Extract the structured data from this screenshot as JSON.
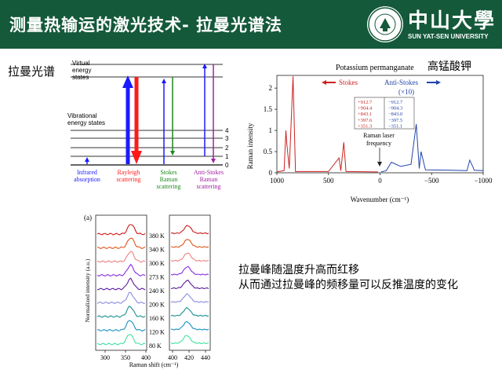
{
  "header": {
    "title": "测量热输运的激光技术- 拉曼光谱法",
    "logo_cn": "中山大學",
    "logo_en": "SUN YAT-SEN UNIVERSITY",
    "bg_color": "#14593a"
  },
  "labels": {
    "raman_spectrum": "拉曼光谱",
    "kmno4": "高锰酸钾",
    "note_line1": "拉曼峰随温度升高而红移",
    "note_line2": "从而通过拉曼峰的频移量可以反推温度的变化"
  },
  "energy_diagram": {
    "virtual_label": [
      "Virtual",
      "energy",
      "states"
    ],
    "vibrational_label": [
      "Vibrational",
      "energy states"
    ],
    "level_labels": [
      "0",
      "1",
      "2",
      "3",
      "4"
    ],
    "processes": [
      {
        "name": [
          "Infrared",
          "absorption"
        ],
        "color": "#1a1aff"
      },
      {
        "name": [
          "Rayleigh",
          "scattering"
        ],
        "color": "#ff1a1a"
      },
      {
        "name": [
          "Stokes",
          "Raman",
          "scattering"
        ],
        "color": "#1a8a1a"
      },
      {
        "name": [
          "Anti-Stokes",
          "Raman",
          "scattering"
        ],
        "color": "#a020a0"
      }
    ]
  },
  "chart_data": [
    {
      "type": "line",
      "title": "Potassium permanganate",
      "xlabel": "Wavenumber (cm⁻¹)",
      "ylabel": "Raman intensity",
      "xlim": [
        1000,
        -1000
      ],
      "ylim": [
        0,
        2.3
      ],
      "x_ticks": [
        "1000",
        "500",
        "0",
        "−500",
        "−1000"
      ],
      "y_ticks": [
        "0",
        "0.5",
        "1",
        "1.5",
        "2"
      ],
      "legend": {
        "stokes": "Stokes",
        "anti_stokes": "Anti-Stokes",
        "anti_stokes_scale": "(×10)"
      },
      "series": [
        {
          "name": "Stokes",
          "color": "#cc2222",
          "x": [
            1000,
            930,
            912.7,
            904.4,
            880,
            843.1,
            820,
            500,
            397.6,
            380,
            351.3,
            330,
            20
          ],
          "y": [
            0.02,
            0.05,
            1.0,
            0.7,
            0.1,
            2.28,
            0.03,
            0.03,
            0.35,
            0.05,
            0.72,
            0.03,
            0.02
          ]
        },
        {
          "name": "Anti-Stokes",
          "color": "#2244aa",
          "x": [
            -10,
            -60,
            -110,
            -200,
            -300,
            -351.1,
            -380,
            -397.5,
            -440,
            -700,
            -843,
            -870,
            -904,
            -912.7,
            -1000
          ],
          "y": [
            0.02,
            0.05,
            0.25,
            0.15,
            0.2,
            1.15,
            0.1,
            0.5,
            0.07,
            0.06,
            0.05,
            0.3,
            0.12,
            0.06,
            0.05
          ]
        }
      ],
      "peak_table": {
        "stokes": [
          "+912.7",
          "+904.4",
          "+843.1",
          "+397.6",
          "+351.3"
        ],
        "anti_stokes": [
          "−912.7",
          "−904.3",
          "−843.0",
          "−397.5",
          "−351.1"
        ]
      },
      "annotation": [
        "Raman laser",
        "frequency"
      ]
    },
    {
      "type": "line",
      "panel_label": "(a)",
      "xlabel": "Raman shift (cm⁻¹)",
      "ylabel": "Normalized intensity (a.u.)",
      "left_ticks": [
        "300",
        "350",
        "400"
      ],
      "right_ticks": [
        "400",
        "420",
        "440"
      ],
      "temperatures": [
        "380 K",
        "340 K",
        "300 K",
        "273 K",
        "240 K",
        "200 K",
        "160 K",
        "120 K",
        "80 K"
      ],
      "colors": [
        "#cc1a1a",
        "#e0551a",
        "#f08080",
        "#8a2be2",
        "#5a1aa0",
        "#8a8ae0",
        "#1a9090",
        "#1a90c0",
        "#40e0a0"
      ]
    }
  ]
}
